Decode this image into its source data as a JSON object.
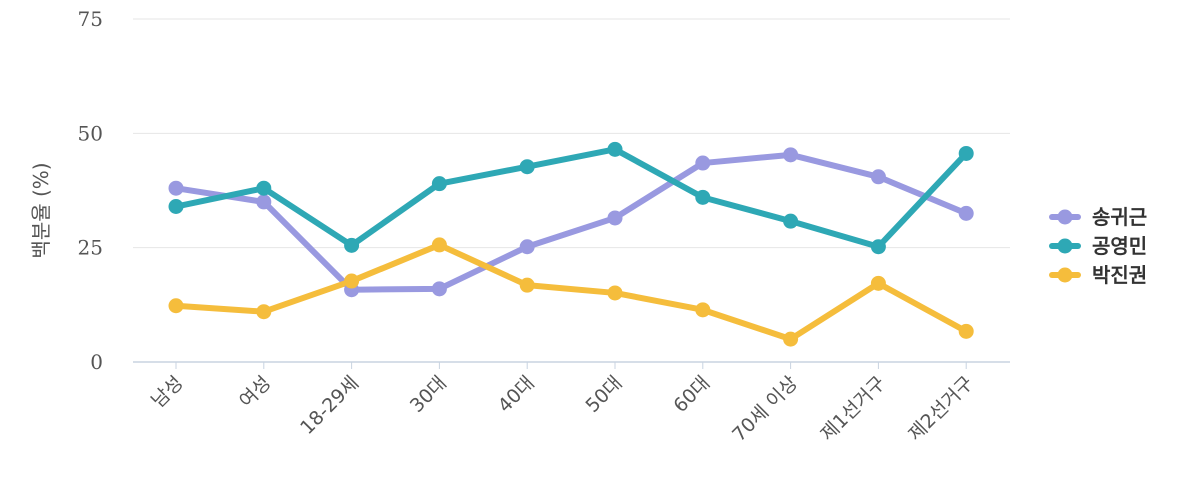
{
  "chart_data": {
    "type": "line",
    "title": "",
    "xlabel": "",
    "ylabel": "백분율 (%)",
    "ylim": [
      0,
      75
    ],
    "yticks": [
      0,
      25,
      50,
      75
    ],
    "grid": true,
    "legend_position": "right",
    "categories": [
      "남성",
      "여성",
      "18-29세",
      "30대",
      "40대",
      "50대",
      "60대",
      "70세 이상",
      "제1선거구",
      "제2선거구"
    ],
    "series": [
      {
        "name": "송귀근",
        "color": "#9999e0",
        "values": [
          38.0,
          35.0,
          15.8,
          16.0,
          25.2,
          31.5,
          43.5,
          45.3,
          40.5,
          32.5
        ]
      },
      {
        "name": "공영민",
        "color": "#2ea8b5",
        "values": [
          34.0,
          38.0,
          25.5,
          39.0,
          42.7,
          46.5,
          36.0,
          30.8,
          25.2,
          45.6
        ]
      },
      {
        "name": "박진권",
        "color": "#f5bd3c",
        "values": [
          12.3,
          11.0,
          17.7,
          25.6,
          16.8,
          15.1,
          11.4,
          5.0,
          17.2,
          6.7
        ]
      }
    ]
  }
}
